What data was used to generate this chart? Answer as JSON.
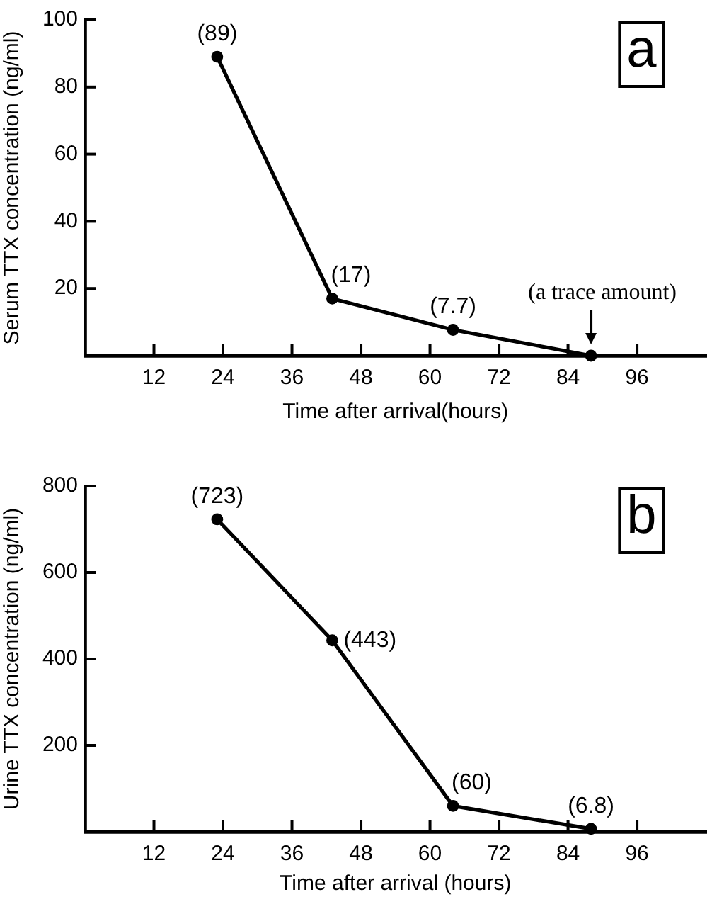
{
  "chart_data": [
    {
      "type": "line",
      "xlabel": "Time after arrival(hours)",
      "ylabel": "Serum TTX concentration (ng/ml)",
      "x": [
        23,
        43,
        64,
        88
      ],
      "values": [
        89,
        17,
        7.7,
        0
      ],
      "value_labels": [
        "(89)",
        "(17)",
        "(7.7)",
        null
      ],
      "color": "#000000",
      "xlim": [
        0,
        108
      ],
      "xticks": [
        12,
        24,
        36,
        48,
        60,
        72,
        84,
        96
      ],
      "ylim": [
        0,
        100
      ],
      "yticks": [
        20,
        40,
        60,
        80,
        100
      ],
      "marker": "circle",
      "line_style": "solid",
      "annotations": [
        "a",
        {
          "text": "(a trace amount)",
          "x": 88,
          "y": 0
        }
      ]
    },
    {
      "type": "line",
      "xlabel": "Time after arrival (hours)",
      "ylabel": "Urine TTX concentration (ng/ml)",
      "x": [
        23,
        43,
        64,
        88
      ],
      "values": [
        723,
        443,
        60,
        6.8
      ],
      "value_labels": [
        "(723)",
        "(443)",
        "(60)",
        "(6.8)"
      ],
      "color": "#000000",
      "xlim": [
        0,
        108
      ],
      "xticks": [
        12,
        24,
        36,
        48,
        60,
        72,
        84,
        96
      ],
      "ylim": [
        0,
        800
      ],
      "yticks": [
        200,
        400,
        600,
        800
      ],
      "marker": "circle",
      "line_style": "solid",
      "annotations": [
        "b"
      ]
    }
  ]
}
